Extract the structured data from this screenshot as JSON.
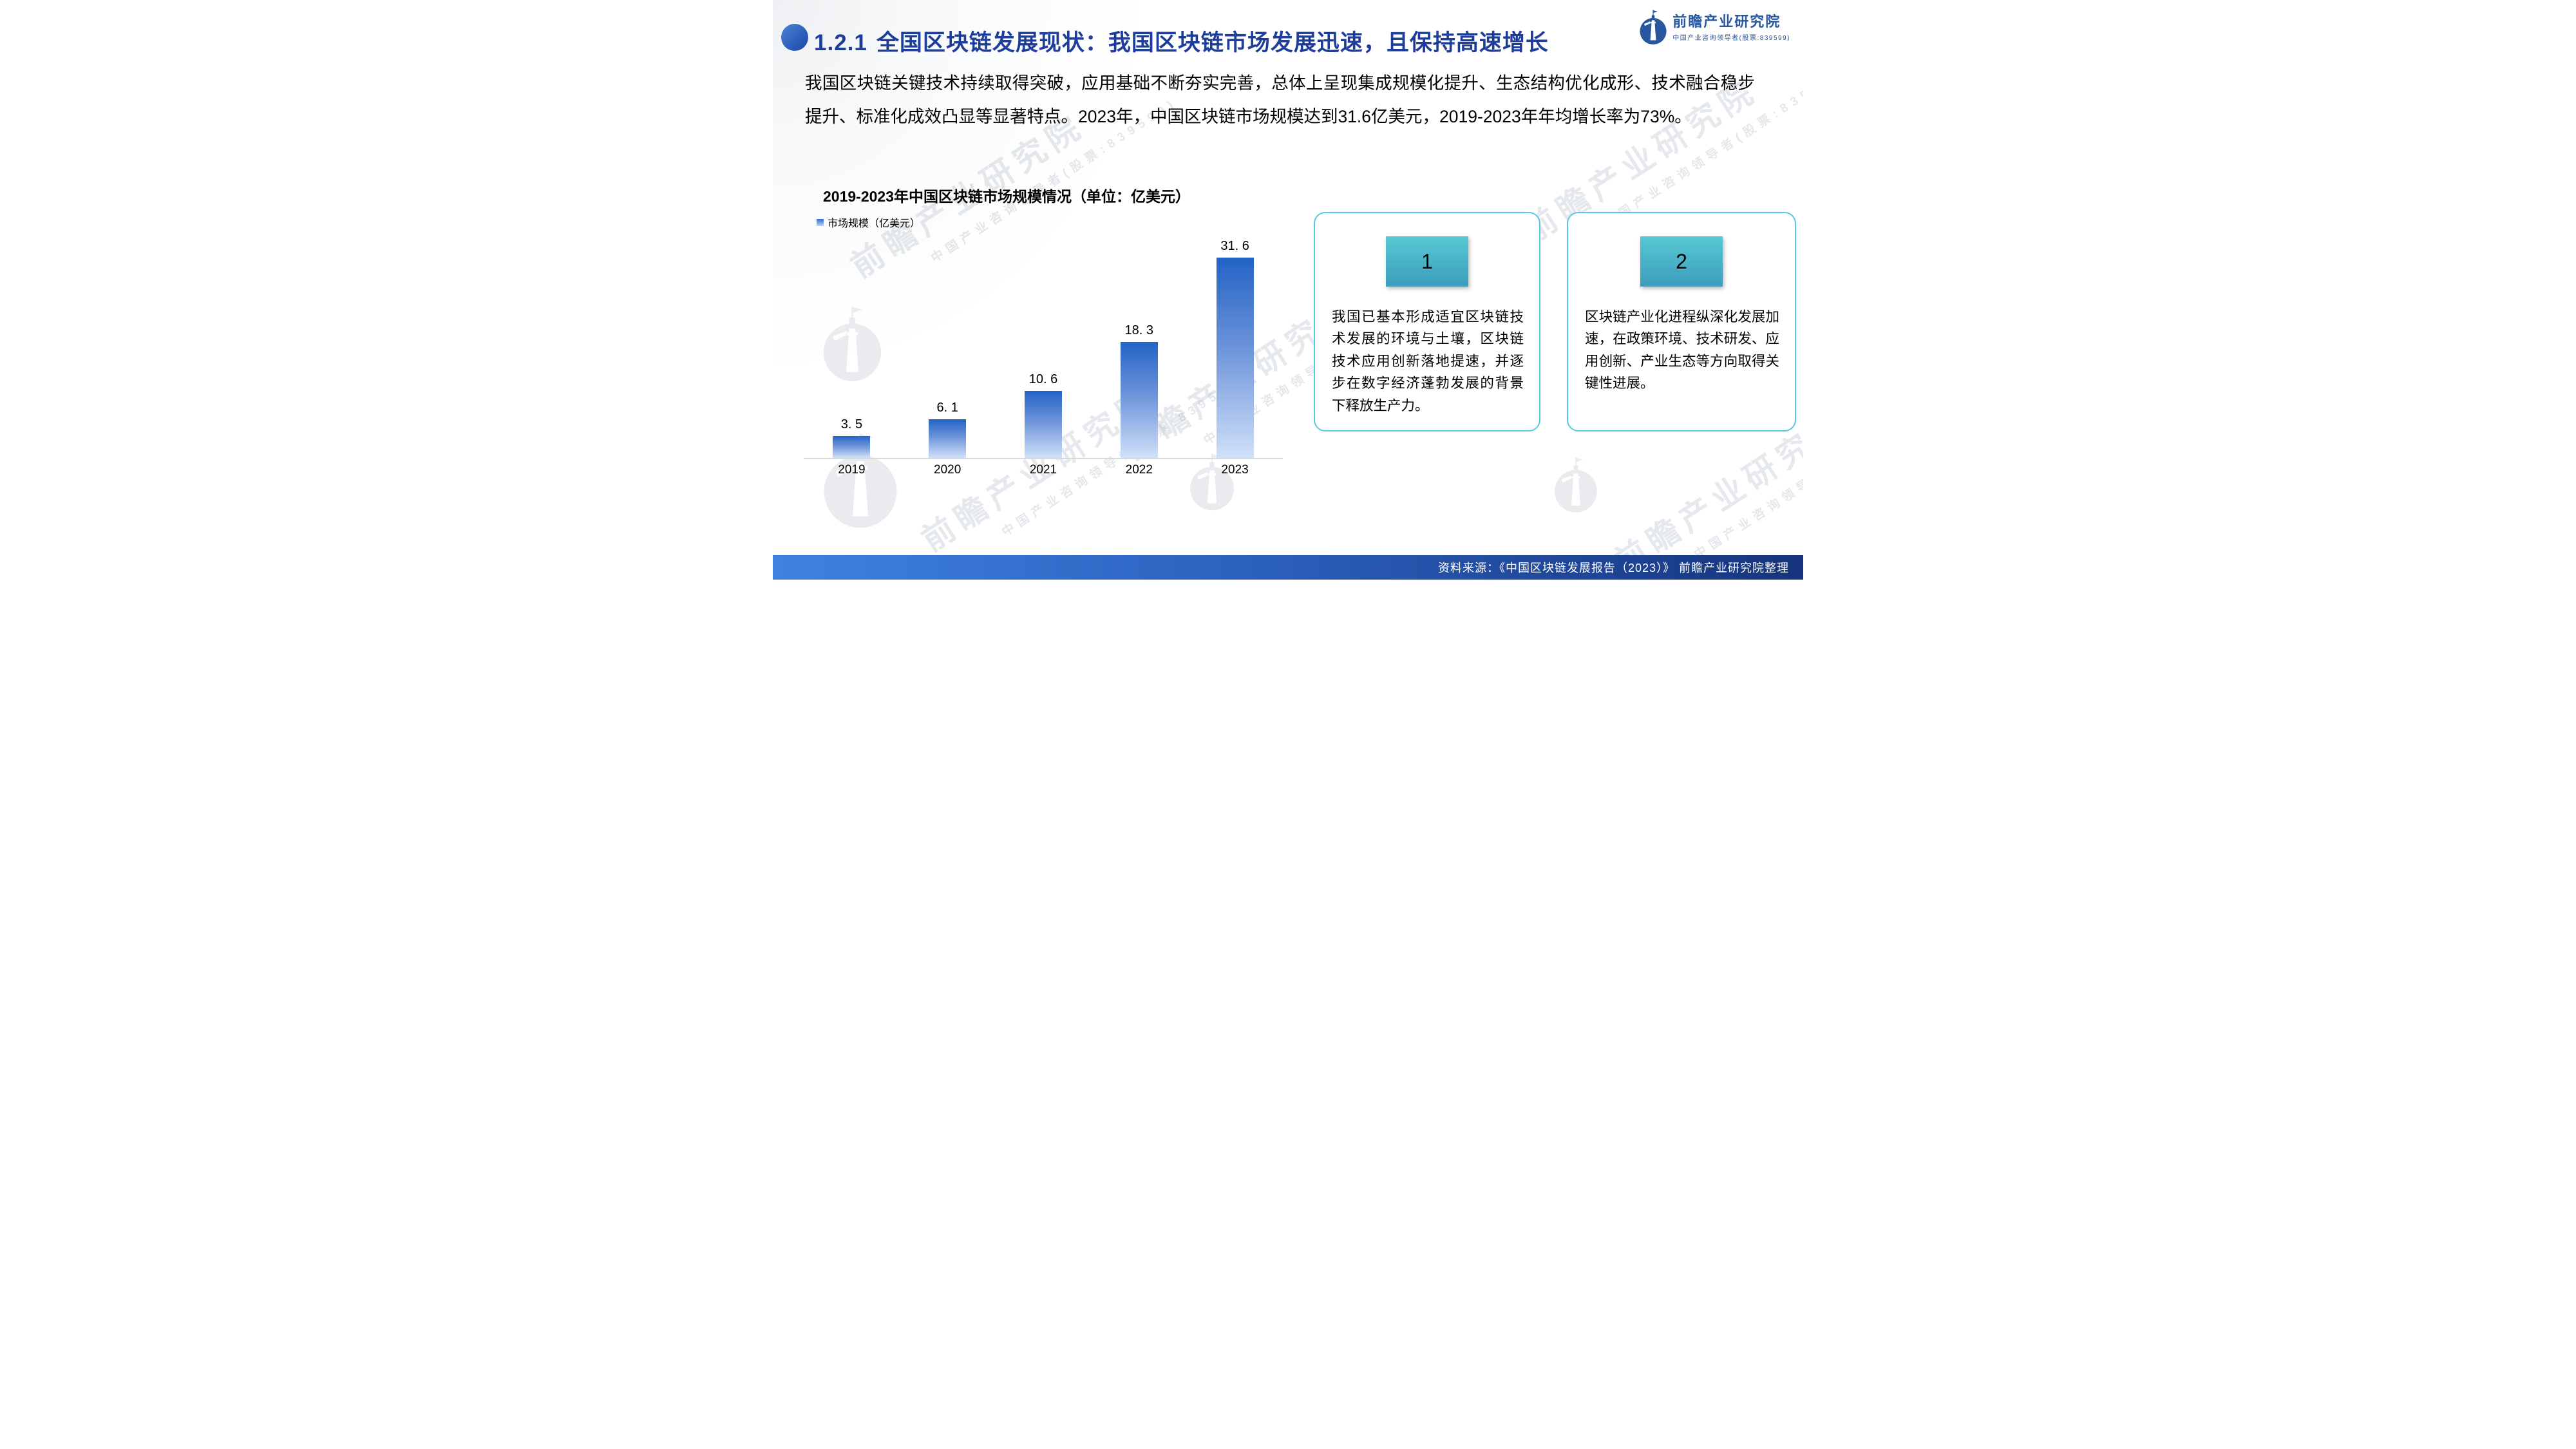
{
  "slide": {
    "section_number": "1.2.1",
    "title": "全国区块链发展现状：我国区块链市场发展迅速，且保持高速增长",
    "body_paragraph": "我国区块链关键技术持续取得突破，应用基础不断夯实完善，总体上呈现集成规模化提升、生态结构优化成形、技术融合稳步提升、标准化成效凸显等显著特点。2023年，中国区块链市场规模达到31.6亿美元，2019-2023年年均增长率为73%。"
  },
  "logo": {
    "name": "前瞻产业研究院",
    "tagline": "中国产业咨询领导者(股票:839599)"
  },
  "chart": {
    "title": "2019-2023年中国区块链市场规模情况（单位：亿美元）",
    "legend_label": "市场规模（亿美元）"
  },
  "chart_data": {
    "type": "bar",
    "title": "2019-2023年中国区块链市场规模情况（单位：亿美元）",
    "categories": [
      "2019",
      "2020",
      "2021",
      "2022",
      "2023"
    ],
    "series": [
      {
        "name": "市场规模（亿美元）",
        "values": [
          3.5,
          6.1,
          10.6,
          18.3,
          31.6
        ]
      }
    ],
    "values": [
      3.5,
      6.1,
      10.6,
      18.3,
      31.6
    ],
    "value_labels": [
      "3. 5",
      "6. 1",
      "10. 6",
      "18. 3",
      "31. 6"
    ],
    "xlabel": "",
    "ylabel": "亿美元",
    "ylim": [
      0,
      33
    ],
    "grid": false,
    "legend_position": "top-left",
    "bar_gradient": [
      "#2363c5",
      "#d0e1f8"
    ]
  },
  "cards": [
    {
      "number": "1",
      "text": "我国已基本形成适宜区块链技术发展的环境与土壤，区块链技术应用创新落地提速，并逐步在数字经济蓬勃发展的背景下释放生产力。"
    },
    {
      "number": "2",
      "text": "区块链产业化进程纵深化发展加速，在政策环境、技术研发、应用创新、产业生态等方向取得关键性进展。"
    }
  ],
  "footer": {
    "source_text": "资料来源：《中国区块链发展报告（2023）》 前瞻产业研究院整理"
  },
  "watermark": {
    "text": "前瞻产业研究院",
    "subtext": "中国产业咨询领导者(股票:839599)"
  },
  "colors": {
    "title_blue": "#1e3d99",
    "bar_top": "#2363c5",
    "bar_bottom": "#d0e1f8",
    "card_border": "#58c8e0",
    "badge_top": "#57c8d4",
    "badge_bottom": "#3d9dbb",
    "footer_left": "#3f82de",
    "footer_right": "#16347d",
    "logo_blue": "#29579f",
    "axis_line": "#d8d8d8"
  }
}
